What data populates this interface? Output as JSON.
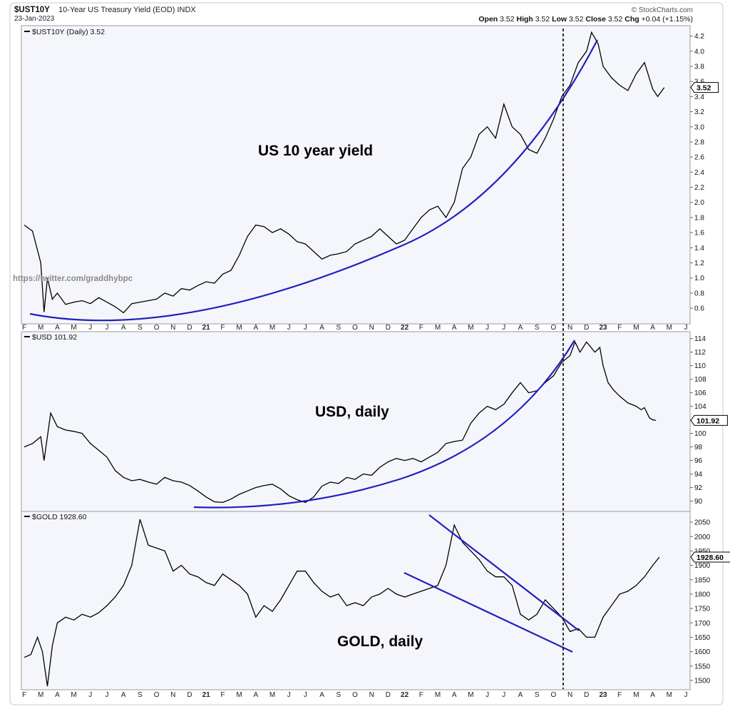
{
  "header": {
    "symbol": "$UST10Y",
    "description": "10-Year US Treasury Yield (EOD) INDX",
    "date": "23-Jan-2023",
    "source": "© StockCharts.com",
    "quote_open_label": "Open",
    "quote_open": "3.52",
    "quote_high_label": "High",
    "quote_high": "3.52",
    "quote_low_label": "Low",
    "quote_low": "3.52",
    "quote_close_label": "Close",
    "quote_close": "3.52",
    "quote_chg_label": "Chg",
    "quote_chg": "+0.04 (+1.15%)"
  },
  "watermark": "https://twitter.com/graddhybpc",
  "colors": {
    "price_line": "#000000",
    "trend_line": "#2020c0",
    "panel_bg": "#f5f6fb",
    "frame": "#9a9aa0"
  },
  "x_axis_labels": [
    "F",
    "M",
    "A",
    "M",
    "J",
    "J",
    "A",
    "S",
    "O",
    "N",
    "D",
    "21",
    "F",
    "M",
    "A",
    "M",
    "J",
    "J",
    "A",
    "S",
    "O",
    "N",
    "D",
    "22",
    "F",
    "M",
    "A",
    "M",
    "J",
    "J",
    "A",
    "S",
    "O",
    "N",
    "D",
    "23",
    "F",
    "M",
    "A",
    "M",
    "J"
  ],
  "chart_data": [
    {
      "type": "line",
      "legend": "$UST10Y (Daily) 3.52",
      "annotation": "US 10 year yield",
      "last_value_label": "3.52",
      "y_ticks": [
        "0.6",
        "0.8",
        "1.0",
        "1.2",
        "1.4",
        "1.6",
        "1.8",
        "2.0",
        "2.2",
        "2.4",
        "2.6",
        "2.8",
        "3.0",
        "3.2",
        "3.4",
        "3.6",
        "3.8",
        "4.0",
        "4.2"
      ],
      "ylim": [
        0.45,
        4.3
      ],
      "series": [
        {
          "values": [
            [
              0.0,
              1.7
            ],
            [
              0.5,
              1.62
            ],
            [
              1.0,
              1.2
            ],
            [
              1.2,
              0.55
            ],
            [
              1.4,
              1.0
            ],
            [
              1.7,
              0.72
            ],
            [
              2.0,
              0.8
            ],
            [
              2.5,
              0.65
            ],
            [
              3.0,
              0.68
            ],
            [
              3.5,
              0.7
            ],
            [
              4.0,
              0.66
            ],
            [
              4.5,
              0.74
            ],
            [
              5.0,
              0.68
            ],
            [
              5.5,
              0.62
            ],
            [
              6.0,
              0.54
            ],
            [
              6.5,
              0.66
            ],
            [
              7.0,
              0.68
            ],
            [
              7.5,
              0.7
            ],
            [
              8.0,
              0.72
            ],
            [
              8.5,
              0.8
            ],
            [
              9.0,
              0.76
            ],
            [
              9.5,
              0.86
            ],
            [
              10.0,
              0.84
            ],
            [
              10.5,
              0.9
            ],
            [
              11.0,
              0.95
            ],
            [
              11.5,
              0.93
            ],
            [
              12.0,
              1.05
            ],
            [
              12.5,
              1.1
            ],
            [
              13.0,
              1.3
            ],
            [
              13.5,
              1.55
            ],
            [
              14.0,
              1.7
            ],
            [
              14.5,
              1.68
            ],
            [
              15.0,
              1.6
            ],
            [
              15.5,
              1.65
            ],
            [
              16.0,
              1.58
            ],
            [
              16.5,
              1.48
            ],
            [
              17.0,
              1.45
            ],
            [
              17.5,
              1.35
            ],
            [
              18.0,
              1.25
            ],
            [
              18.5,
              1.3
            ],
            [
              19.0,
              1.32
            ],
            [
              19.5,
              1.35
            ],
            [
              20.0,
              1.45
            ],
            [
              20.5,
              1.5
            ],
            [
              21.0,
              1.55
            ],
            [
              21.5,
              1.65
            ],
            [
              22.0,
              1.55
            ],
            [
              22.5,
              1.45
            ],
            [
              23.0,
              1.5
            ],
            [
              23.5,
              1.65
            ],
            [
              24.0,
              1.8
            ],
            [
              24.5,
              1.9
            ],
            [
              25.0,
              1.95
            ],
            [
              25.5,
              1.8
            ],
            [
              26.0,
              2.0
            ],
            [
              26.5,
              2.45
            ],
            [
              27.0,
              2.6
            ],
            [
              27.5,
              2.9
            ],
            [
              28.0,
              3.0
            ],
            [
              28.5,
              2.85
            ],
            [
              29.0,
              3.3
            ],
            [
              29.5,
              3.0
            ],
            [
              30.0,
              2.9
            ],
            [
              30.5,
              2.7
            ],
            [
              31.0,
              2.65
            ],
            [
              31.5,
              2.85
            ],
            [
              32.0,
              3.1
            ],
            [
              32.5,
              3.4
            ],
            [
              33.0,
              3.55
            ],
            [
              33.5,
              3.85
            ],
            [
              34.0,
              4.0
            ],
            [
              34.3,
              4.25
            ],
            [
              34.7,
              4.1
            ],
            [
              35.0,
              3.8
            ],
            [
              35.5,
              3.65
            ],
            [
              36.0,
              3.55
            ],
            [
              36.5,
              3.48
            ],
            [
              37.0,
              3.7
            ],
            [
              37.5,
              3.85
            ],
            [
              38.0,
              3.5
            ],
            [
              38.3,
              3.4
            ],
            [
              38.7,
              3.52
            ]
          ]
        }
      ]
    },
    {
      "type": "line",
      "legend": "$USD 101.92",
      "annotation": "USD, daily",
      "last_value_label": "101.92",
      "y_ticks": [
        "90",
        "92",
        "94",
        "96",
        "98",
        "100",
        "102",
        "104",
        "106",
        "108",
        "110",
        "112",
        "114"
      ],
      "ylim": [
        89,
        114.5
      ],
      "series": [
        {
          "values": [
            [
              0.0,
              98.0
            ],
            [
              0.5,
              98.5
            ],
            [
              1.0,
              99.5
            ],
            [
              1.2,
              96.0
            ],
            [
              1.6,
              103.0
            ],
            [
              2.0,
              101.0
            ],
            [
              2.5,
              100.5
            ],
            [
              3.0,
              100.3
            ],
            [
              3.5,
              100.0
            ],
            [
              4.0,
              98.5
            ],
            [
              4.5,
              97.5
            ],
            [
              5.0,
              96.5
            ],
            [
              5.5,
              94.5
            ],
            [
              6.0,
              93.5
            ],
            [
              6.5,
              93.0
            ],
            [
              7.0,
              93.2
            ],
            [
              7.5,
              92.8
            ],
            [
              8.0,
              92.5
            ],
            [
              8.5,
              93.5
            ],
            [
              9.0,
              93.0
            ],
            [
              9.5,
              92.8
            ],
            [
              10.0,
              92.3
            ],
            [
              10.5,
              91.5
            ],
            [
              11.0,
              90.6
            ],
            [
              11.5,
              89.9
            ],
            [
              12.0,
              89.8
            ],
            [
              12.5,
              90.3
            ],
            [
              13.0,
              91.0
            ],
            [
              13.5,
              91.5
            ],
            [
              14.0,
              92.0
            ],
            [
              14.5,
              92.3
            ],
            [
              15.0,
              92.5
            ],
            [
              15.5,
              91.8
            ],
            [
              16.0,
              90.8
            ],
            [
              16.5,
              90.2
            ],
            [
              17.0,
              89.8
            ],
            [
              17.5,
              90.6
            ],
            [
              18.0,
              92.2
            ],
            [
              18.5,
              92.8
            ],
            [
              19.0,
              92.6
            ],
            [
              19.5,
              93.5
            ],
            [
              20.0,
              93.2
            ],
            [
              20.5,
              94.0
            ],
            [
              21.0,
              93.8
            ],
            [
              21.5,
              95.0
            ],
            [
              22.0,
              95.8
            ],
            [
              22.5,
              96.3
            ],
            [
              23.0,
              96.0
            ],
            [
              23.5,
              96.3
            ],
            [
              24.0,
              95.8
            ],
            [
              24.5,
              96.5
            ],
            [
              25.0,
              97.2
            ],
            [
              25.5,
              98.5
            ],
            [
              26.0,
              98.8
            ],
            [
              26.5,
              99.0
            ],
            [
              27.0,
              101.5
            ],
            [
              27.5,
              103.0
            ],
            [
              28.0,
              104.0
            ],
            [
              28.5,
              103.5
            ],
            [
              29.0,
              104.3
            ],
            [
              29.5,
              106.0
            ],
            [
              30.0,
              107.5
            ],
            [
              30.5,
              106.0
            ],
            [
              31.0,
              106.3
            ],
            [
              31.5,
              107.5
            ],
            [
              32.0,
              108.5
            ],
            [
              32.5,
              110.5
            ],
            [
              33.0,
              111.5
            ],
            [
              33.3,
              113.5
            ],
            [
              33.6,
              112.0
            ],
            [
              34.0,
              113.5
            ],
            [
              34.5,
              112.0
            ],
            [
              34.8,
              112.7
            ],
            [
              35.0,
              110.0
            ],
            [
              35.3,
              107.5
            ],
            [
              35.6,
              106.5
            ],
            [
              36.0,
              105.5
            ],
            [
              36.5,
              104.5
            ],
            [
              37.0,
              104.0
            ],
            [
              37.3,
              103.5
            ],
            [
              37.5,
              103.8
            ],
            [
              37.8,
              102.3
            ],
            [
              38.0,
              102.0
            ],
            [
              38.2,
              101.92
            ]
          ]
        }
      ]
    },
    {
      "type": "line",
      "legend": "$GOLD 1928.60",
      "annotation": "GOLD, daily",
      "last_value_label": "1928.60",
      "y_ticks": [
        "1500",
        "1550",
        "1600",
        "1650",
        "1700",
        "1750",
        "1800",
        "1850",
        "1900",
        "1950",
        "2000",
        "2050"
      ],
      "ylim": [
        1480,
        2075
      ],
      "series": [
        {
          "values": [
            [
              0.0,
              1580
            ],
            [
              0.4,
              1590
            ],
            [
              0.8,
              1650
            ],
            [
              1.1,
              1600
            ],
            [
              1.4,
              1480
            ],
            [
              1.7,
              1620
            ],
            [
              2.0,
              1700
            ],
            [
              2.5,
              1720
            ],
            [
              3.0,
              1710
            ],
            [
              3.5,
              1730
            ],
            [
              4.0,
              1720
            ],
            [
              4.5,
              1735
            ],
            [
              5.0,
              1760
            ],
            [
              5.5,
              1790
            ],
            [
              6.0,
              1830
            ],
            [
              6.5,
              1900
            ],
            [
              7.0,
              2060
            ],
            [
              7.5,
              1970
            ],
            [
              8.0,
              1960
            ],
            [
              8.5,
              1950
            ],
            [
              9.0,
              1880
            ],
            [
              9.5,
              1900
            ],
            [
              10.0,
              1870
            ],
            [
              10.5,
              1860
            ],
            [
              11.0,
              1840
            ],
            [
              11.5,
              1830
            ],
            [
              12.0,
              1870
            ],
            [
              12.5,
              1850
            ],
            [
              13.0,
              1830
            ],
            [
              13.5,
              1800
            ],
            [
              14.0,
              1720
            ],
            [
              14.5,
              1760
            ],
            [
              15.0,
              1740
            ],
            [
              15.5,
              1780
            ],
            [
              16.0,
              1830
            ],
            [
              16.5,
              1880
            ],
            [
              17.0,
              1880
            ],
            [
              17.5,
              1840
            ],
            [
              18.0,
              1810
            ],
            [
              18.5,
              1790
            ],
            [
              19.0,
              1800
            ],
            [
              19.5,
              1760
            ],
            [
              20.0,
              1770
            ],
            [
              20.5,
              1760
            ],
            [
              21.0,
              1790
            ],
            [
              21.5,
              1800
            ],
            [
              22.0,
              1820
            ],
            [
              22.5,
              1800
            ],
            [
              23.0,
              1790
            ],
            [
              23.5,
              1800
            ],
            [
              24.0,
              1810
            ],
            [
              24.5,
              1820
            ],
            [
              25.0,
              1830
            ],
            [
              25.5,
              1900
            ],
            [
              26.0,
              2040
            ],
            [
              26.5,
              1980
            ],
            [
              27.0,
              1950
            ],
            [
              27.5,
              1920
            ],
            [
              28.0,
              1880
            ],
            [
              28.5,
              1860
            ],
            [
              29.0,
              1860
            ],
            [
              29.5,
              1830
            ],
            [
              30.0,
              1730
            ],
            [
              30.5,
              1710
            ],
            [
              31.0,
              1730
            ],
            [
              31.5,
              1780
            ],
            [
              32.0,
              1750
            ],
            [
              32.5,
              1720
            ],
            [
              33.0,
              1670
            ],
            [
              33.5,
              1680
            ],
            [
              34.0,
              1650
            ],
            [
              34.5,
              1650
            ],
            [
              35.0,
              1720
            ],
            [
              35.5,
              1760
            ],
            [
              36.0,
              1800
            ],
            [
              36.5,
              1810
            ],
            [
              37.0,
              1830
            ],
            [
              37.5,
              1860
            ],
            [
              38.0,
              1900
            ],
            [
              38.4,
              1928.6
            ]
          ]
        }
      ]
    }
  ]
}
